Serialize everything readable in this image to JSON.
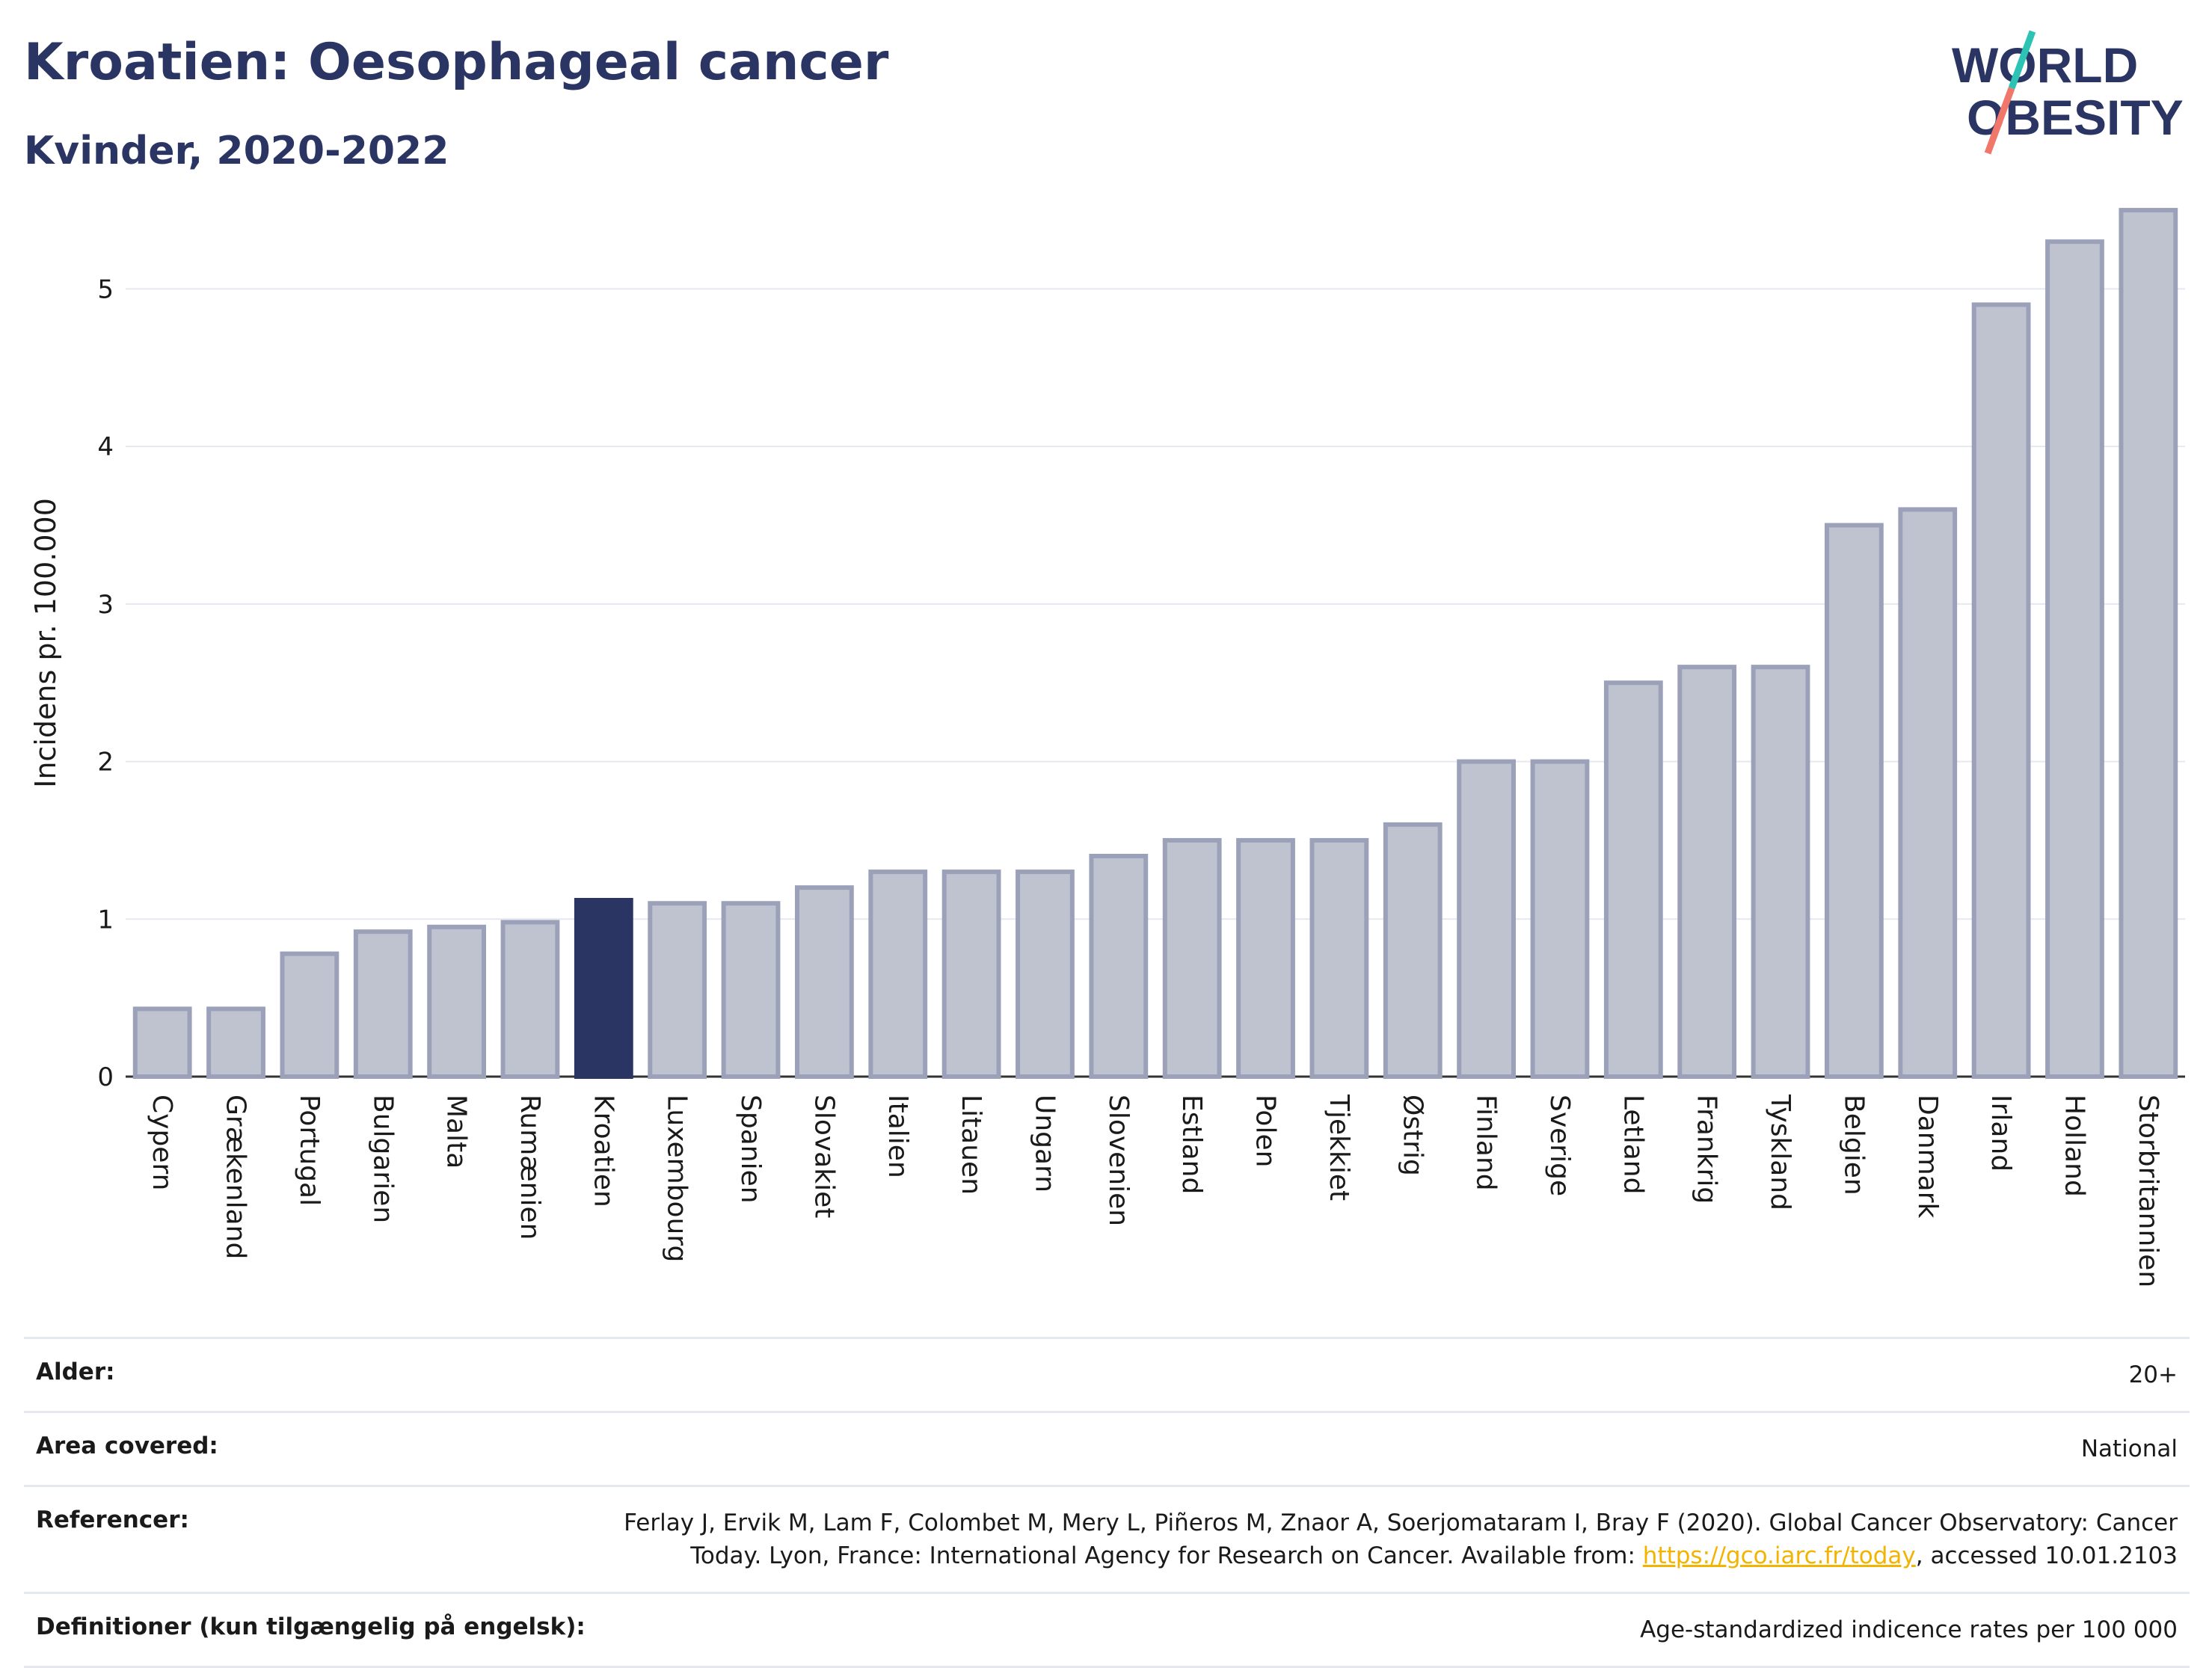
{
  "header": {
    "title": "Kroatien: Oesophageal cancer",
    "subtitle": "Kvinder, 2020-2022"
  },
  "logo": {
    "line1": "WORLD",
    "line2": "OBESITY"
  },
  "colors": {
    "highlight": "#2a3563",
    "bar": "#bfc3cf",
    "bar_border": "#9ba1b8",
    "text": "#2a3563",
    "slash_teal": "#2cc3b5",
    "slash_coral": "#f0776a"
  },
  "chart_data": {
    "type": "bar",
    "ylabel": "Incidens pr. 100.000",
    "ylim": [
      0,
      5.6
    ],
    "yticks": [
      0,
      1,
      2,
      3,
      4,
      5
    ],
    "grid": true,
    "highlight": "Kroatien",
    "categories": [
      "Cypern",
      "Grækenland",
      "Portugal",
      "Bulgarien",
      "Malta",
      "Rumænien",
      "Kroatien",
      "Luxembourg",
      "Spanien",
      "Slovakiet",
      "Italien",
      "Litauen",
      "Ungarn",
      "Slovenien",
      "Estland",
      "Polen",
      "Tjekkiet",
      "Østrig",
      "Finland",
      "Sverige",
      "Letland",
      "Frankrig",
      "Tyskland",
      "Belgien",
      "Danmark",
      "Irland",
      "Holland",
      "Storbritannien"
    ],
    "values": [
      0.43,
      0.43,
      0.78,
      0.92,
      0.95,
      0.98,
      1.12,
      1.1,
      1.1,
      1.2,
      1.3,
      1.3,
      1.3,
      1.4,
      1.5,
      1.5,
      1.5,
      1.6,
      2.0,
      2.0,
      2.5,
      2.6,
      2.6,
      3.5,
      3.6,
      4.9,
      5.3,
      5.5
    ]
  },
  "meta": {
    "age_label": "Alder:",
    "age_value": "20+",
    "area_label": "Area covered:",
    "area_value": "National",
    "ref_label": "Referencer:",
    "ref_text1": "Ferlay J, Ervik M, Lam F, Colombet M, Mery L, Piñeros M, Znaor A, Soerjomataram I, Bray F (2020). Global Cancer Observatory: Cancer Today. Lyon, France: International Agency for Research on Cancer. Available from: ",
    "ref_link": "https://gco.iarc.fr/today",
    "ref_text2": ", accessed 10.01.2103",
    "def_label": "Definitioner (kun tilgængelig på engelsk):",
    "def_value": "Age-standardized indicence rates per 100 000"
  }
}
